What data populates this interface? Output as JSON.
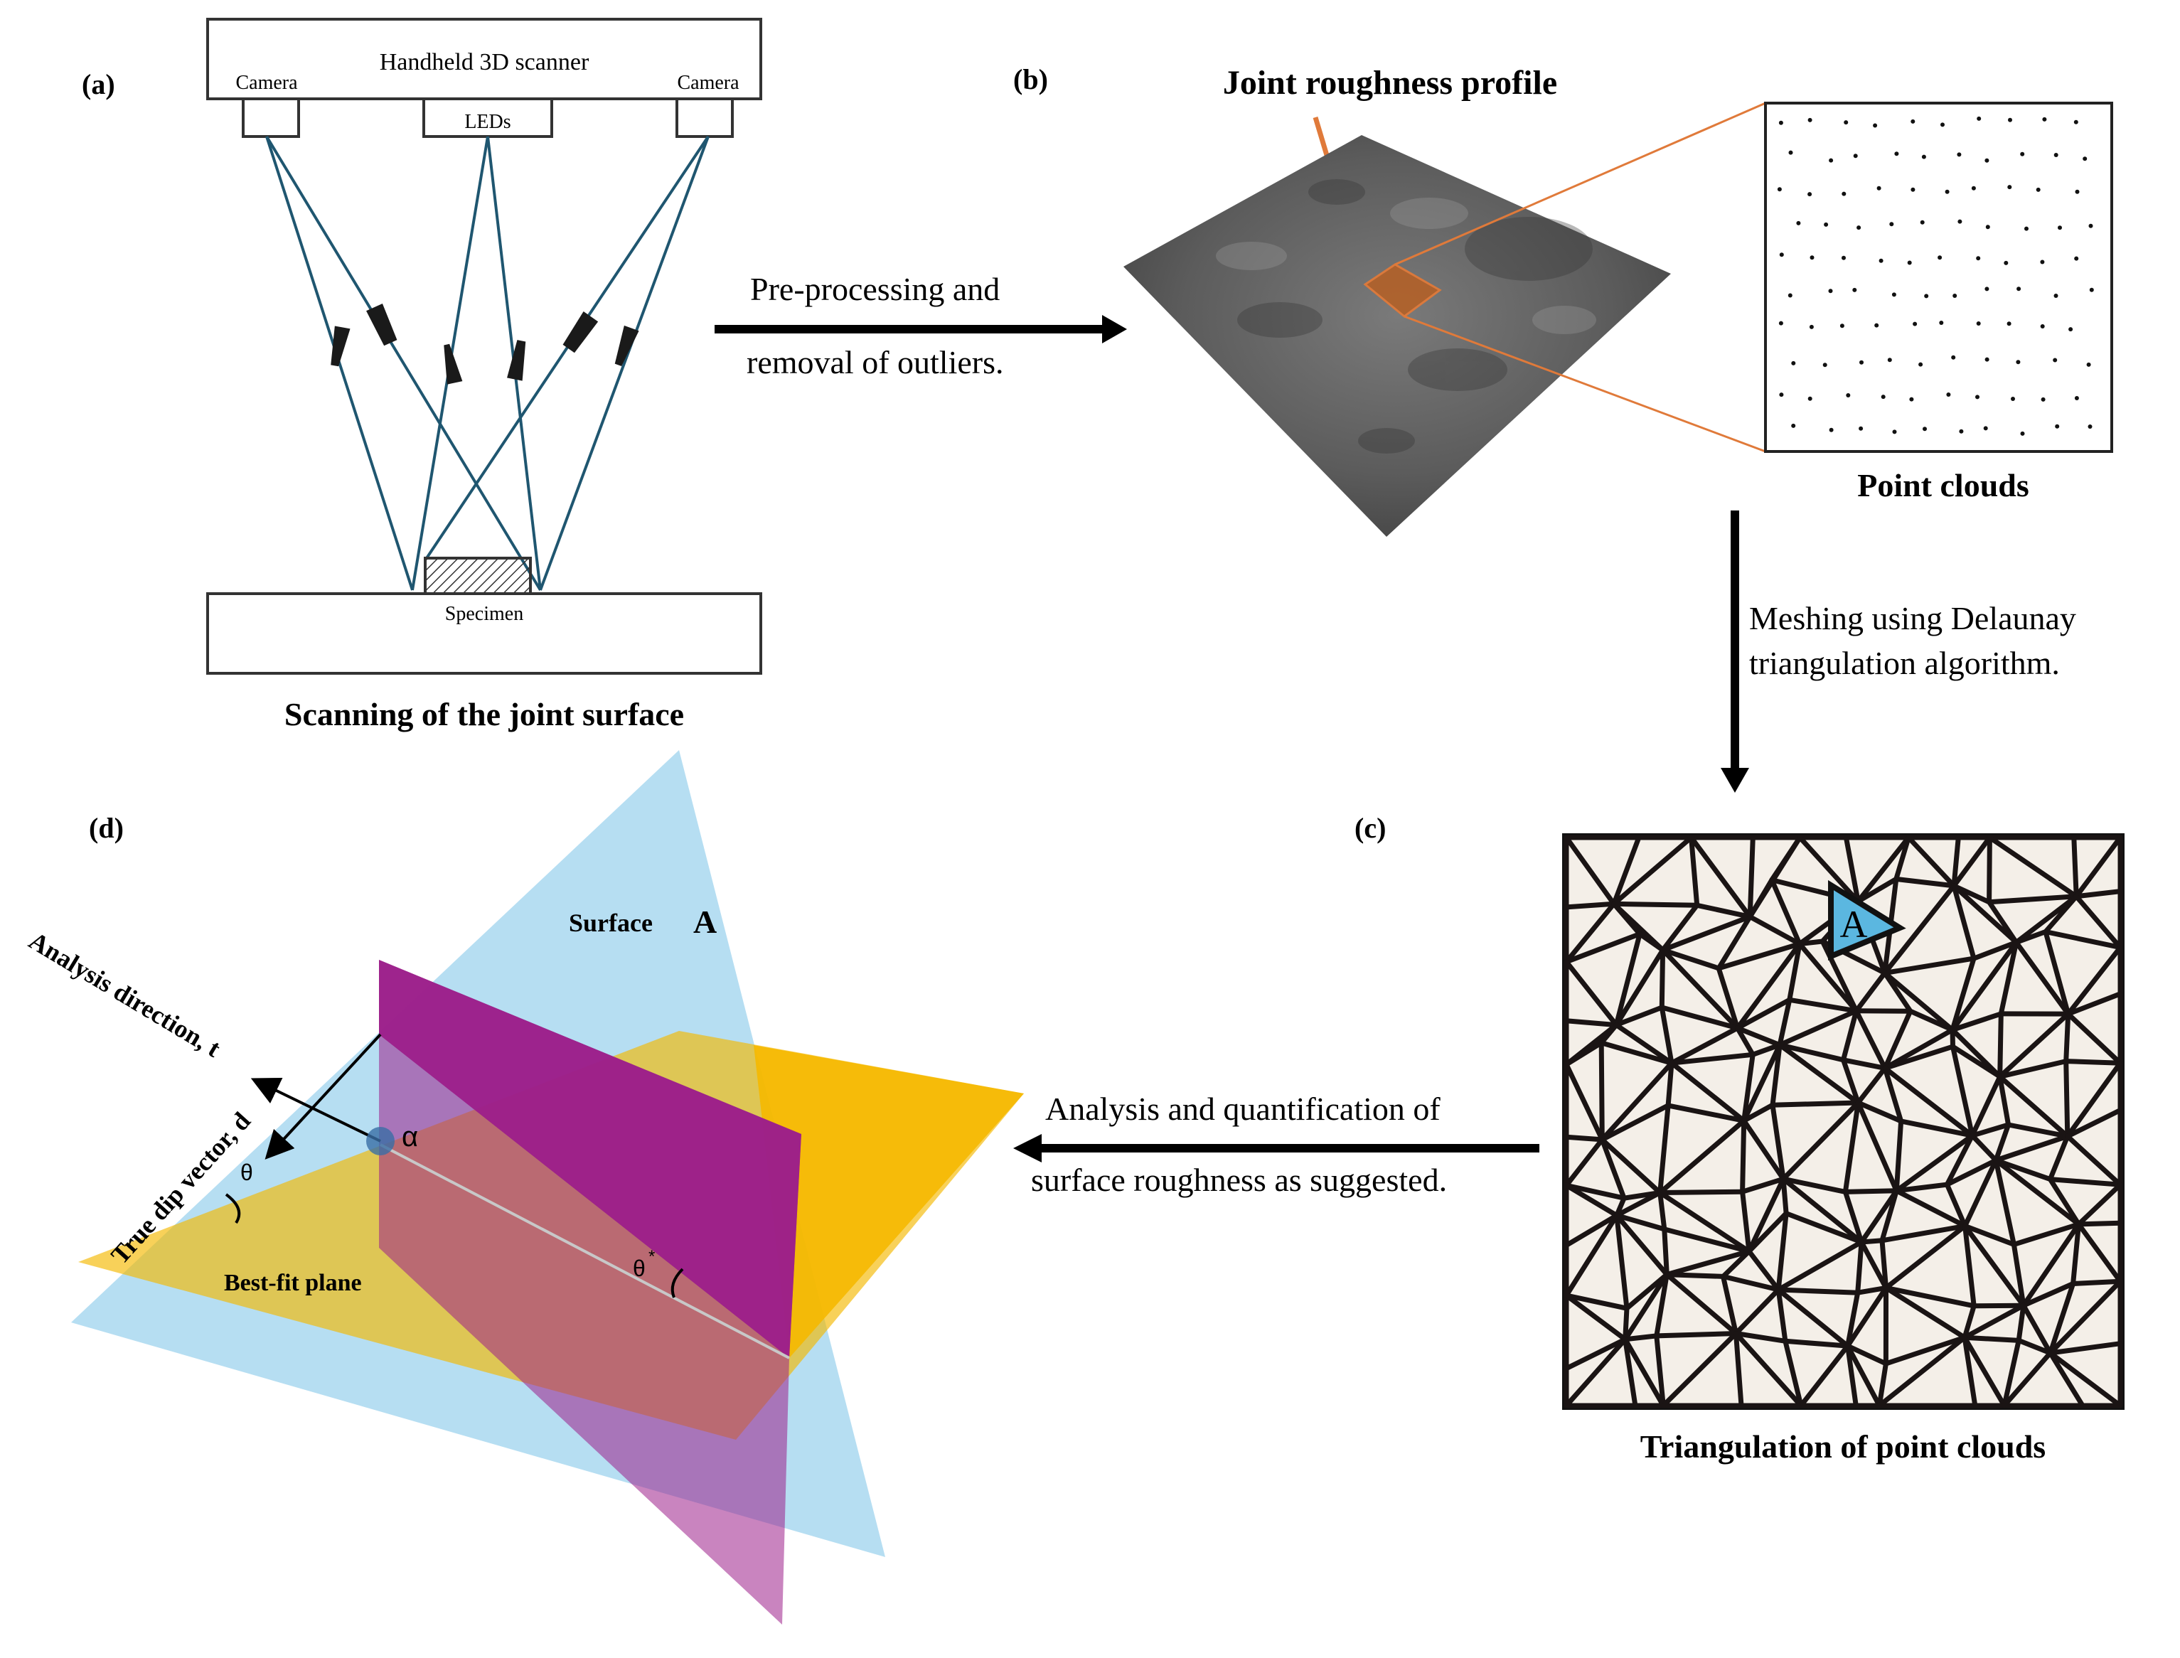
{
  "panels": {
    "a": {
      "label": "(a)",
      "scanner": "Handheld 3D scanner",
      "camera_left": "Camera",
      "camera_right": "Camera",
      "leds": "LEDs",
      "specimen": "Specimen",
      "caption": "Scanning of the joint surface"
    },
    "b": {
      "label": "(b)",
      "profile_title": "Joint roughness profile",
      "caption": "Point clouds"
    },
    "c": {
      "label": "(c)",
      "triangle_label": "A",
      "caption": "Triangulation of point clouds"
    },
    "d": {
      "label": "(d)",
      "surface_label": "Surface",
      "surface_letter": "A",
      "analysis_direction": "Analysis direction, t",
      "dip_vector": "True dip vector, d",
      "theta": "θ",
      "theta_star": "θ",
      "star": "*",
      "alpha": "α",
      "best_fit": "Best-fit plane"
    }
  },
  "arrows": {
    "ab_line1": "Pre-processing and",
    "ab_line2": "removal of outliers.",
    "bc_line1": "Meshing using Delaunay",
    "bc_line2": "triangulation algorithm.",
    "cd_line1": "Analysis and quantification of",
    "cd_line2": "surface roughness as suggested."
  },
  "colors": {
    "ray": "#1f5670",
    "orange": "#e07a3a",
    "surface_blue": "#a9d8f0",
    "plane_yellow": "#f2c94c",
    "plane_orange": "#f5b800",
    "purple": "#9c1f8a",
    "mesh_bg": "#f4efe8",
    "tri_fill": "#5bb7e0"
  }
}
